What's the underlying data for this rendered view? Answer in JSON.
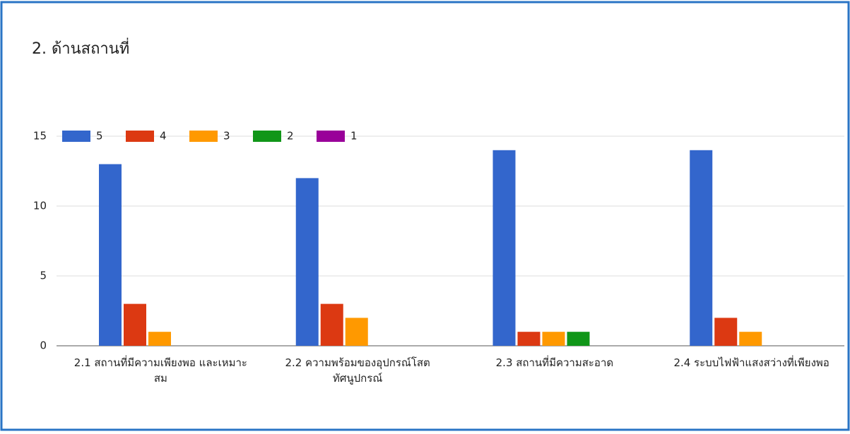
{
  "chart_data": {
    "type": "bar",
    "title": "2. ด้านสถานที่",
    "categories": [
      "2.1 สถานที่มีความเพียงพอ และเหมาะสม",
      "2.2 ความพร้อมของอุปกรณ์โสตทัศนูปกรณ์",
      "2.3 สถานที่มีความสะอาด",
      "2.4 ระบบไฟฟ้าแสงสว่างที่เพียงพอ"
    ],
    "series": [
      {
        "name": "5",
        "color": "#3366cc",
        "values": [
          13,
          12,
          14,
          14
        ]
      },
      {
        "name": "4",
        "color": "#dc3912",
        "values": [
          3,
          3,
          1,
          2
        ]
      },
      {
        "name": "3",
        "color": "#ff9900",
        "values": [
          1,
          2,
          1,
          1
        ]
      },
      {
        "name": "2",
        "color": "#109618",
        "values": [
          0,
          0,
          1,
          0
        ]
      },
      {
        "name": "1",
        "color": "#990099",
        "values": [
          0,
          0,
          0,
          0
        ]
      }
    ],
    "ylim": [
      0,
      15
    ],
    "yticks": [
      0,
      5,
      10,
      15
    ],
    "grid": true,
    "legend": "top-left"
  }
}
